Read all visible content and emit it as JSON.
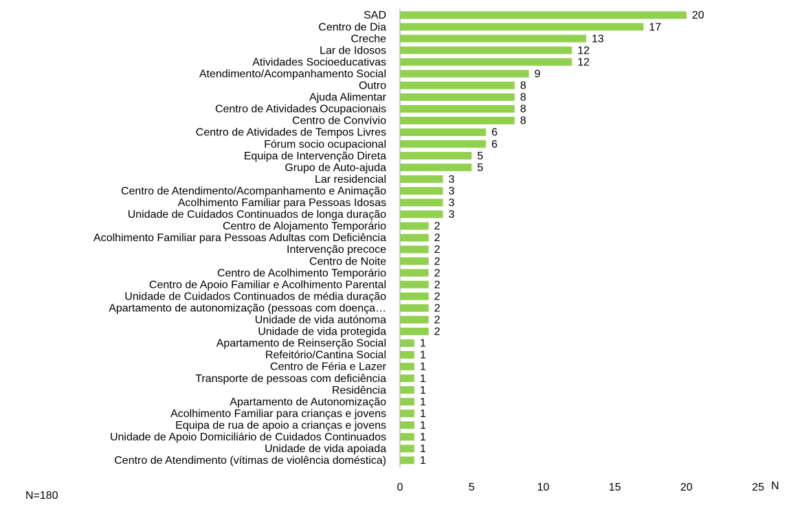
{
  "chart_data": {
    "type": "hbar",
    "categories": [
      "SAD",
      "Centro de Dia",
      "Creche",
      "Lar de Idosos",
      "Atividades Socioeducativas",
      "Atendimento/Acompanhamento Social",
      "Outro",
      "Ajuda Alimentar",
      "Centro de Atividades Ocupacionais",
      "Centro de Convívio",
      "Centro de Atividades de Tempos Livres",
      "Fórum socio ocupacional",
      "Equipa de Intervenção Direta",
      "Grupo de Auto-ajuda",
      "Lar residencial",
      "Centro de Atendimento/Acompanhamento e Animação",
      "Acolhimento Familiar para Pessoas Idosas",
      "Unidade de Cuidados Continuados de longa duração",
      "Centro de Alojamento Temporário",
      "Acolhimento Familiar para Pessoas Adultas com Deficiência",
      "Intervenção precoce",
      "Centro de Noite",
      "Centro de Acolhimento Temporário",
      "Centro de Apoio Familiar e Acolhimento Parental",
      "Unidade de Cuidados Continuados de média duração",
      "Apartamento de autonomização (pessoas com doença…",
      "Unidade de vida autónoma",
      "Unidade de vida protegida",
      "Apartamento de Reinserção Social",
      "Refeitório/Cantina Social",
      "Centro de Féria e Lazer",
      "Transporte de pessoas com deficiência",
      "Residência",
      "Apartamento de Autonomização",
      "Acolhimento Familiar para crianças e jovens",
      "Equipa de rua de apoio a crianças e jovens",
      "Unidade de Apoio Domiciliário de Cuidados Continuados",
      "Unidade de vida apoiada",
      "Centro de Atendimento (vítimas de violência doméstica)"
    ],
    "values": [
      20,
      17,
      13,
      12,
      12,
      9,
      8,
      8,
      8,
      8,
      6,
      6,
      5,
      5,
      3,
      3,
      3,
      3,
      2,
      2,
      2,
      2,
      2,
      2,
      2,
      2,
      2,
      2,
      1,
      1,
      1,
      1,
      1,
      1,
      1,
      1,
      1,
      1,
      1
    ],
    "color": "#92d050",
    "xlim": [
      0,
      25
    ],
    "xticks": [
      0,
      5,
      10,
      15,
      20,
      25
    ],
    "xlabel": "N",
    "note": "N=180"
  }
}
